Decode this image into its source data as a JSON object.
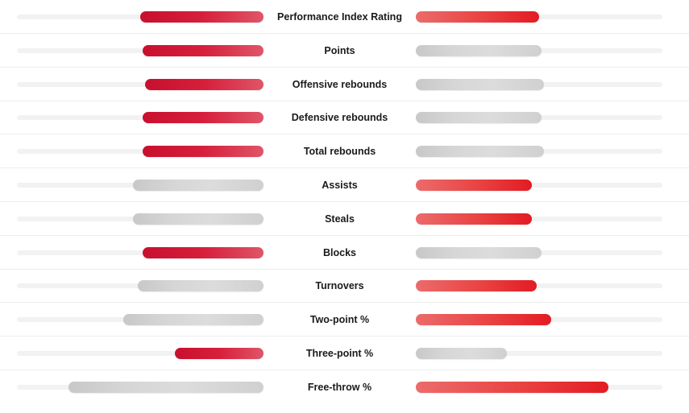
{
  "colors": {
    "winner_left": "#c8102e",
    "winner_right": "#e31b23",
    "loser": "#d6d6d6",
    "track": "#f2f2f2"
  },
  "stats": [
    {
      "label": "Performance Index Rating",
      "left": 0.5,
      "right": 0.5,
      "winner": "both"
    },
    {
      "label": "Points",
      "left": 0.49,
      "right": 0.51,
      "winner": "left"
    },
    {
      "label": "Offensive rebounds",
      "left": 0.48,
      "right": 0.52,
      "winner": "left"
    },
    {
      "label": "Defensive rebounds",
      "left": 0.49,
      "right": 0.51,
      "winner": "left"
    },
    {
      "label": "Total rebounds",
      "left": 0.49,
      "right": 0.52,
      "winner": "left"
    },
    {
      "label": "Assists",
      "left": 0.53,
      "right": 0.47,
      "winner": "right"
    },
    {
      "label": "Steals",
      "left": 0.53,
      "right": 0.47,
      "winner": "right"
    },
    {
      "label": "Blocks",
      "left": 0.49,
      "right": 0.51,
      "winner": "left"
    },
    {
      "label": "Turnovers",
      "left": 0.51,
      "right": 0.49,
      "winner": "right"
    },
    {
      "label": "Two-point %",
      "left": 0.57,
      "right": 0.55,
      "winner": "right"
    },
    {
      "label": "Three-point %",
      "left": 0.36,
      "right": 0.37,
      "winner": "left"
    },
    {
      "label": "Free-throw %",
      "left": 0.79,
      "right": 0.78,
      "winner": "right"
    }
  ]
}
